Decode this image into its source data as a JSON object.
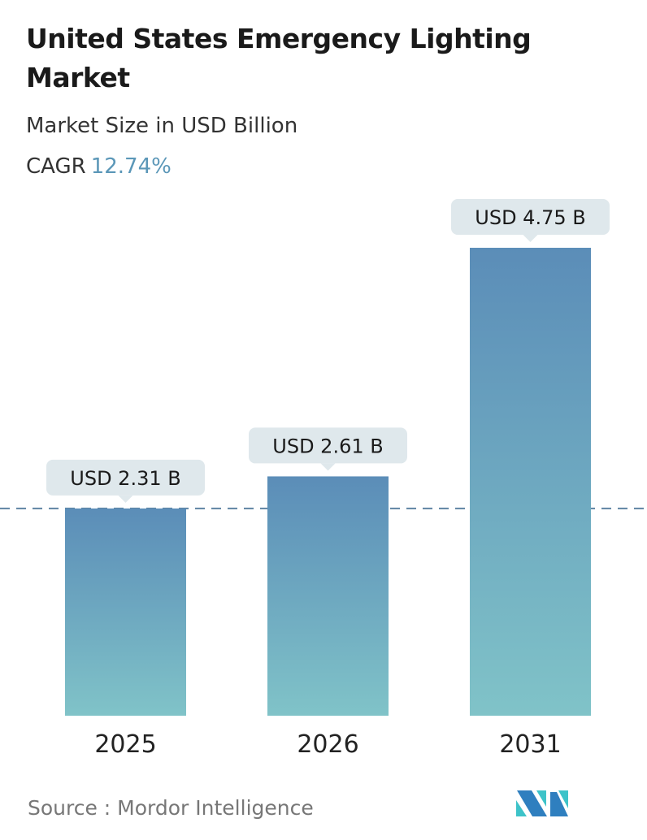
{
  "title": "United States Emergency Lighting Market",
  "subtitle": "Market Size in USD Billion",
  "cagr_label": "CAGR",
  "cagr_value": "12.74%",
  "source": "Source :  Mordor Intelligence",
  "logo_text": "Mordor Intelligence",
  "colors": {
    "bar_top": "#5b8db8",
    "bar_bottom": "#80c3c8",
    "label_bg": "#dfe8ec",
    "dashed_line": "#5f84a3",
    "cagr": "#5b97b8"
  },
  "chart_data": {
    "type": "bar",
    "categories": [
      "2025",
      "2026",
      "2031"
    ],
    "values": [
      2.31,
      2.61,
      4.75
    ],
    "data_labels": [
      "USD 2.31 B",
      "USD 2.61 B",
      "USD 4.75 B"
    ],
    "reference_line": "dashed line at 2025 value",
    "grid": false,
    "legend": "none"
  }
}
